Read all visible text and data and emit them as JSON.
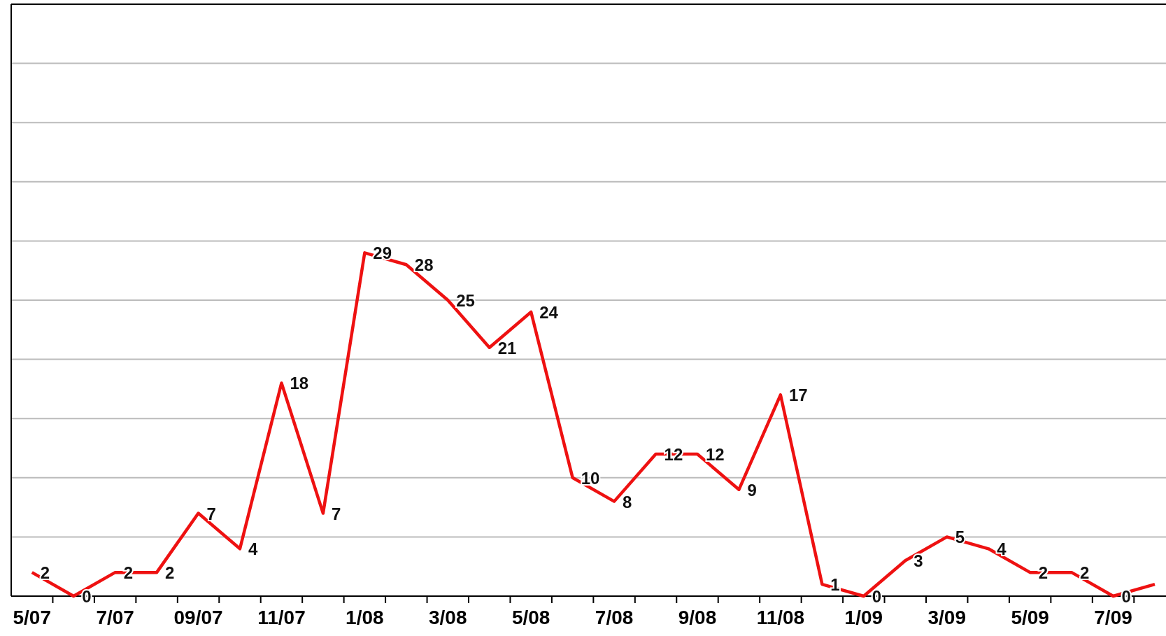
{
  "chart_data": {
    "type": "line",
    "categories": [
      "5/07",
      null,
      "7/07",
      null,
      "09/07",
      null,
      "11/07",
      null,
      "1/08",
      null,
      "3/08",
      null,
      "5/08",
      null,
      "7/08",
      null,
      "9/08",
      null,
      "11/08",
      null,
      "1/09",
      null,
      "3/09",
      null,
      "5/09",
      null,
      "7/09",
      null
    ],
    "series": [
      {
        "color": "#ee1111",
        "values": [
          2,
          0,
          2,
          2,
          7,
          4,
          18,
          7,
          29,
          28,
          25,
          21,
          24,
          10,
          8,
          12,
          12,
          9,
          17,
          1,
          0,
          3,
          5,
          4,
          2,
          2,
          0,
          1
        ],
        "value_labels": [
          "2",
          "0",
          "2",
          "2",
          "7",
          "4",
          "18",
          "7",
          "29",
          "28",
          "25",
          "21",
          "24",
          "10",
          "8",
          "12",
          "12",
          "9",
          "17",
          "1",
          "0",
          "3",
          "5",
          "4",
          "2",
          "2",
          "0",
          null
        ]
      }
    ],
    "ylim": [
      0,
      50
    ],
    "yticks": [
      {
        "value": 0,
        "label": null
      },
      {
        "value": 5,
        "label": null
      },
      {
        "value": 10,
        "label": null
      },
      {
        "value": 15,
        "label": null
      },
      {
        "value": 20,
        "label": null
      },
      {
        "value": 25,
        "label": null
      },
      {
        "value": 30,
        "label": null
      },
      {
        "value": 35,
        "label": null
      },
      {
        "value": 40,
        "label": null
      },
      {
        "value": 45,
        "label": null
      },
      {
        "value": 50,
        "label": null
      }
    ],
    "tick_labels": "x",
    "grid": "y",
    "marker": "none",
    "line_style": "solid"
  }
}
